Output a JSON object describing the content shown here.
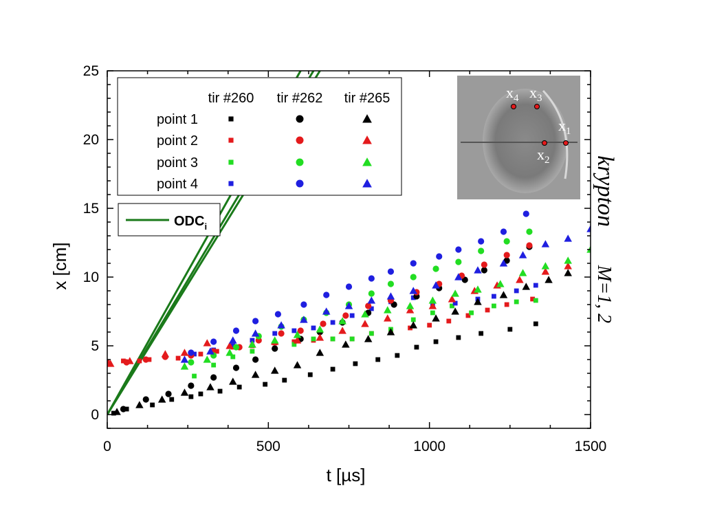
{
  "chart_data": {
    "type": "scatter",
    "xlabel": "t [µs]",
    "ylabel": "x [cm]",
    "xlim": [
      0,
      1500
    ],
    "ylim": [
      -1,
      25
    ],
    "xticks": [
      0,
      500,
      1000,
      1500
    ],
    "yticks": [
      0,
      5,
      10,
      15,
      20,
      25
    ],
    "side_label": {
      "gas": "krypton",
      "mach": "M=1, 2"
    },
    "legend": {
      "placement": "top-left",
      "columns": [
        "tir #260",
        "tir #262",
        "tir #265"
      ],
      "rows": [
        "point 1",
        "point 2",
        "point 3",
        "point 4"
      ],
      "line_label": "ODC",
      "line_label_sub": "i"
    },
    "inset": {
      "labels": [
        "x",
        "x",
        "x",
        "x"
      ],
      "subscripts": [
        "4",
        "3",
        "1",
        "2"
      ]
    },
    "colors": {
      "point 1": "#000000",
      "point 2": "#e41a1c",
      "point 3": "#22dd22",
      "point 4": "#1f1fe0",
      "odc": "#1a7a1a"
    },
    "markers": {
      "tir #260": "square",
      "tir #262": "circle",
      "tir #265": "triangle"
    },
    "odc_lines": [
      {
        "x": [
          0,
          600
        ],
        "y": [
          0,
          25
        ]
      },
      {
        "x": [
          0,
          640
        ],
        "y": [
          0,
          25
        ]
      },
      {
        "x": [
          0,
          660
        ],
        "y": [
          0,
          25
        ]
      }
    ],
    "series": [
      {
        "name": "point 1",
        "shot": "tir #260",
        "x": [
          20,
          60,
          140,
          200,
          260,
          290,
          350,
          410,
          490,
          550,
          630,
          700,
          770,
          840,
          900,
          960,
          1020,
          1090,
          1160,
          1250,
          1330
        ],
        "y": [
          0.1,
          0.4,
          0.7,
          1.1,
          1.3,
          1.5,
          1.7,
          2.0,
          2.2,
          2.5,
          2.9,
          3.3,
          3.7,
          4.0,
          4.3,
          4.9,
          5.3,
          5.6,
          5.9,
          6.2,
          6.6
        ]
      },
      {
        "name": "point 2",
        "shot": "tir #260",
        "x": [
          0,
          50,
          100,
          130,
          220,
          290,
          340,
          390,
          450,
          520,
          580,
          640,
          700,
          760,
          820,
          880,
          940,
          1000,
          1060,
          1120,
          1180,
          1240,
          1320
        ],
        "y": [
          3.8,
          3.9,
          3.9,
          4.0,
          4.1,
          4.4,
          4.6,
          4.9,
          5.0,
          5.2,
          5.3,
          5.4,
          5.5,
          5.5,
          5.9,
          6.1,
          6.3,
          6.5,
          6.8,
          7.2,
          7.6,
          8.0,
          8.4
        ]
      },
      {
        "name": "point 3",
        "shot": "tir #260",
        "x": [
          270,
          330,
          390,
          450,
          520,
          580,
          640,
          700,
          760,
          820,
          880,
          950,
          1010,
          1070,
          1130,
          1200,
          1270,
          1330
        ],
        "y": [
          2.8,
          3.6,
          4.2,
          4.6,
          4.8,
          5.1,
          5.5,
          5.5,
          5.5,
          5.9,
          6.2,
          6.9,
          7.4,
          7.9,
          7.4,
          7.9,
          8.2,
          8.3
        ]
      },
      {
        "name": "point 4",
        "shot": "tir #260",
        "x": [
          270,
          330,
          390,
          450,
          520,
          580,
          640,
          700,
          760,
          820,
          880,
          950,
          1010,
          1080,
          1150,
          1200,
          1270,
          1330
        ],
        "y": [
          4.4,
          4.7,
          5.0,
          5.4,
          5.9,
          6.1,
          6.3,
          6.7,
          7.2,
          7.7,
          8.2,
          8.5,
          8.0,
          8.1,
          8.4,
          8.6,
          9.0,
          9.4
        ]
      },
      {
        "name": "point 1",
        "shot": "tir #262",
        "x": [
          50,
          120,
          190,
          260,
          330,
          400,
          460,
          520,
          600,
          660,
          730,
          810,
          890,
          960,
          1030,
          1110,
          1170,
          1240,
          1310
        ],
        "y": [
          0.4,
          1.1,
          1.5,
          2.1,
          2.7,
          3.4,
          4.0,
          4.8,
          5.5,
          6.0,
          6.7,
          7.4,
          8.0,
          8.6,
          9.2,
          9.8,
          10.5,
          11.2,
          12.2
        ]
      },
      {
        "name": "point 2",
        "shot": "tir #262",
        "x": [
          0,
          60,
          120,
          180,
          260,
          330,
          410,
          470,
          540,
          600,
          670,
          740,
          810,
          880,
          960,
          1030,
          1100,
          1170,
          1240,
          1310
        ],
        "y": [
          3.7,
          3.8,
          4.0,
          4.2,
          4.3,
          4.6,
          4.9,
          5.4,
          5.9,
          6.1,
          6.6,
          7.2,
          7.9,
          8.3,
          8.9,
          9.5,
          10.1,
          10.9,
          11.6,
          12.3
        ]
      },
      {
        "name": "point 3",
        "shot": "tir #262",
        "x": [
          260,
          330,
          400,
          470,
          540,
          610,
          680,
          750,
          820,
          880,
          950,
          1020,
          1090,
          1160,
          1240,
          1310
        ],
        "y": [
          3.8,
          4.3,
          4.9,
          5.7,
          6.4,
          6.9,
          7.4,
          8.0,
          8.8,
          9.5,
          10.0,
          10.6,
          11.1,
          11.9,
          12.6,
          13.3
        ]
      },
      {
        "name": "point 4",
        "shot": "tir #262",
        "x": [
          260,
          330,
          400,
          460,
          530,
          610,
          680,
          750,
          820,
          880,
          950,
          1030,
          1090,
          1160,
          1230,
          1300
        ],
        "y": [
          4.5,
          5.3,
          6.1,
          6.8,
          7.3,
          8.0,
          8.7,
          9.3,
          9.9,
          10.4,
          11.0,
          11.5,
          12.0,
          12.6,
          13.3,
          14.6
        ]
      },
      {
        "name": "point 1",
        "shot": "tir #265",
        "x": [
          30,
          100,
          170,
          240,
          320,
          390,
          460,
          520,
          590,
          660,
          740,
          810,
          880,
          950,
          1020,
          1080,
          1150,
          1230,
          1300,
          1370,
          1430
        ],
        "y": [
          0.2,
          0.7,
          1.1,
          1.6,
          2.0,
          2.4,
          2.9,
          3.2,
          3.6,
          4.5,
          5.1,
          5.5,
          6.0,
          6.5,
          7.0,
          7.5,
          8.2,
          8.7,
          9.3,
          9.8,
          10.3
        ]
      },
      {
        "name": "point 2",
        "shot": "tir #265",
        "x": [
          10,
          70,
          180,
          240,
          310,
          380,
          450,
          520,
          590,
          660,
          730,
          800,
          870,
          940,
          1010,
          1070,
          1140,
          1210,
          1280,
          1360,
          1430
        ],
        "y": [
          3.7,
          3.9,
          4.4,
          4.5,
          5.2,
          5.0,
          5.1,
          5.3,
          5.4,
          5.6,
          6.1,
          6.6,
          7.0,
          7.6,
          7.9,
          8.4,
          9.0,
          9.4,
          9.8,
          10.4,
          10.8
        ]
      },
      {
        "name": "point 3",
        "shot": "tir #265",
        "x": [
          240,
          310,
          380,
          450,
          520,
          590,
          660,
          730,
          800,
          870,
          940,
          1010,
          1080,
          1150,
          1220,
          1290,
          1360,
          1430,
          1500
        ],
        "y": [
          3.5,
          4.0,
          4.5,
          5.1,
          5.4,
          5.8,
          6.2,
          6.8,
          7.3,
          7.6,
          7.9,
          8.3,
          8.8,
          9.1,
          9.5,
          10.3,
          10.8,
          11.2,
          12.0
        ]
      },
      {
        "name": "point 4",
        "shot": "tir #265",
        "x": [
          240,
          320,
          390,
          460,
          540,
          610,
          680,
          750,
          820,
          880,
          950,
          1020,
          1090,
          1150,
          1230,
          1290,
          1360,
          1430,
          1500
        ],
        "y": [
          4.0,
          4.6,
          5.4,
          5.9,
          6.5,
          6.9,
          7.5,
          7.9,
          8.3,
          8.6,
          9.0,
          9.4,
          10.0,
          10.5,
          11.0,
          11.6,
          12.4,
          12.8,
          13.5
        ]
      }
    ]
  }
}
